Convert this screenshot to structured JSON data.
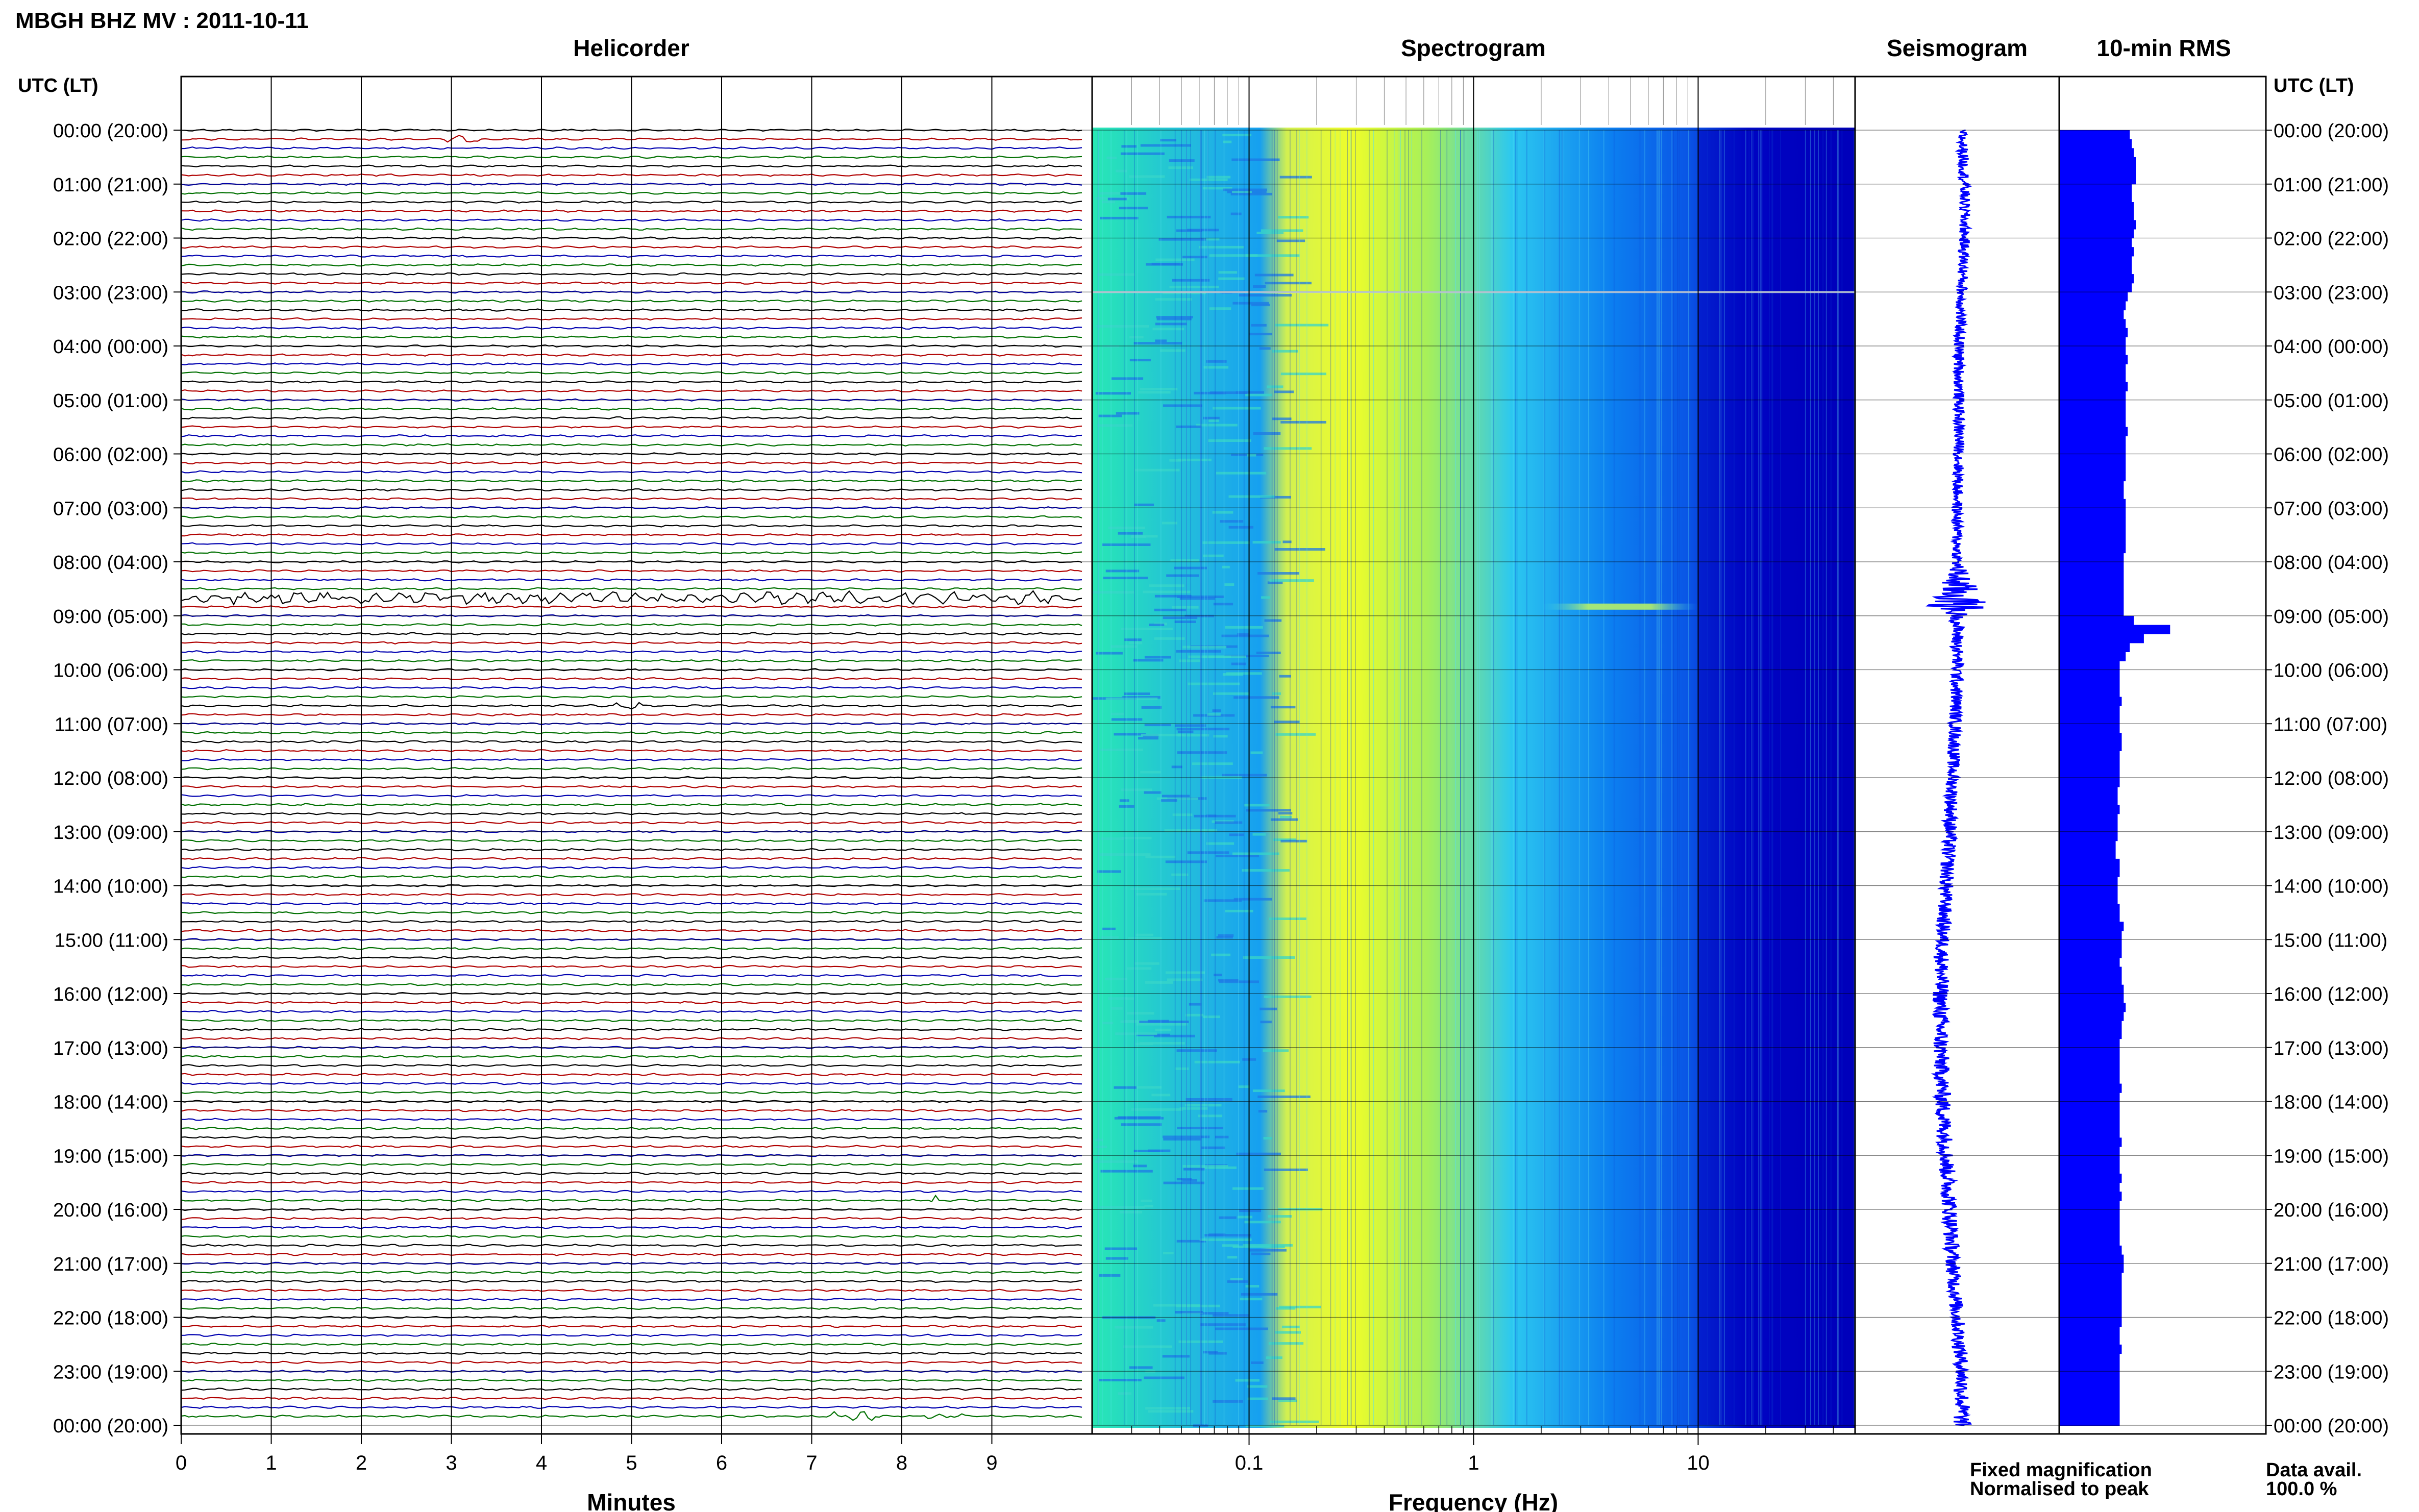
{
  "header": {
    "title": "MBGH BHZ MV : 2011-10-11",
    "left_axis_label": "UTC (LT)",
    "right_axis_label": "UTC (LT)"
  },
  "panels": {
    "helicorder_title": "Helicorder",
    "spectrogram_title": "Spectrogram",
    "seismogram_title": "Seismogram",
    "rms_title": "10-min RMS"
  },
  "footer": {
    "fixed_magnification": "Fixed magnification",
    "normalised_to_peak": "Normalised to peak",
    "data_avail_label": "Data avail.",
    "data_avail_value": "100.0 %"
  },
  "colors": {
    "trace_cycle": [
      "#000000",
      "#b00000",
      "#0000b0",
      "#007000"
    ],
    "seismogram": "#0000ff",
    "rms_bar": "#0000ff",
    "fixed_magnification": "#0000ff",
    "normalised_to_peak": "#ff0000",
    "spectro_low": "#0000b4",
    "spectro_mid": "#00b4ff",
    "spectro_high": "#f0ff00"
  },
  "chart_data": [
    {
      "type": "line",
      "panel": "helicorder",
      "title": "Helicorder",
      "xlabel": "Minutes",
      "x_ticks": [
        "0",
        "1",
        "2",
        "3",
        "4",
        "5",
        "6",
        "7",
        "8",
        "9"
      ],
      "xlim": [
        0,
        10
      ],
      "ylim": [
        0,
        24
      ],
      "y_ticks": [
        "00:00 (20:00)",
        "01:00 (21:00)",
        "02:00 (22:00)",
        "03:00 (23:00)",
        "04:00 (00:00)",
        "05:00 (01:00)",
        "06:00 (02:00)",
        "07:00 (03:00)",
        "08:00 (04:00)",
        "09:00 (05:00)",
        "10:00 (06:00)",
        "11:00 (07:00)",
        "12:00 (08:00)",
        "13:00 (09:00)",
        "14:00 (10:00)",
        "15:00 (11:00)",
        "16:00 (12:00)",
        "17:00 (13:00)",
        "18:00 (14:00)",
        "19:00 (15:00)",
        "20:00 (16:00)",
        "21:00 (17:00)",
        "22:00 (18:00)",
        "23:00 (19:00)",
        "00:00 (20:00)"
      ],
      "traces_per_hour": 6,
      "trace_count": 144,
      "events": [
        {
          "hour": 8.67,
          "minute_start": 0,
          "minute_end": 10,
          "amplitude": 3.5
        },
        {
          "hour": 8.67,
          "minute_start": 4.3,
          "minute_end": 5.2,
          "amplitude": 3.0
        },
        {
          "hour": 10.67,
          "minute_start": 4.8,
          "minute_end": 5.1,
          "amplitude": 2.5
        },
        {
          "hour": 23.83,
          "minute_start": 7.2,
          "minute_end": 7.8,
          "amplitude": 2.5
        },
        {
          "hour": 23.83,
          "minute_start": 8.2,
          "minute_end": 8.7,
          "amplitude": 2.0
        },
        {
          "hour": 19.83,
          "minute_start": 8.3,
          "minute_end": 8.45,
          "amplitude": 2.5
        },
        {
          "hour": 0.17,
          "minute_start": 2.9,
          "minute_end": 3.3,
          "amplitude": 1.8
        }
      ]
    },
    {
      "type": "heatmap",
      "panel": "spectrogram",
      "title": "Spectrogram",
      "xlabel": "Frequency (Hz)",
      "x_scale": "log",
      "x_ticks": [
        "0.1",
        "1",
        "10"
      ],
      "xlim": [
        0.02,
        50
      ],
      "ylim": [
        0,
        24
      ],
      "yellow_band_hz": [
        0.15,
        0.6
      ],
      "dark_above_hz": 10,
      "events": [
        {
          "hour": 8.83,
          "f_low": 2,
          "f_high": 10
        },
        {
          "hour": 3.0,
          "f_low": 0.02,
          "f_high": 50
        }
      ]
    },
    {
      "type": "line",
      "panel": "seismogram",
      "title": "Seismogram",
      "ylim": [
        0,
        24
      ],
      "xlim": [
        -1,
        1
      ],
      "x_ticks": [],
      "hours": [
        0,
        1,
        2,
        3,
        4,
        5,
        6,
        7,
        8,
        8.83,
        9,
        10,
        11,
        12,
        13,
        14,
        15,
        16,
        17,
        18,
        19,
        20,
        21,
        22,
        23,
        24
      ],
      "offset": [
        0.05,
        0.08,
        0.08,
        0.05,
        0.02,
        0.02,
        0.02,
        0.0,
        0.0,
        0.0,
        0.0,
        0.0,
        -0.02,
        -0.05,
        -0.08,
        -0.12,
        -0.16,
        -0.18,
        -0.18,
        -0.16,
        -0.12,
        -0.08,
        -0.05,
        0.0,
        0.05,
        0.05
      ],
      "amplitude": [
        0.06,
        0.06,
        0.06,
        0.06,
        0.06,
        0.06,
        0.06,
        0.06,
        0.06,
        0.35,
        0.08,
        0.07,
        0.07,
        0.07,
        0.08,
        0.08,
        0.08,
        0.09,
        0.09,
        0.09,
        0.09,
        0.09,
        0.08,
        0.08,
        0.08,
        0.1
      ]
    },
    {
      "type": "bar",
      "panel": "rms",
      "title": "10-min RMS",
      "orientation": "horizontal",
      "ylim": [
        0,
        24
      ],
      "xlim": [
        0,
        1
      ],
      "bin_hours": 0.1667,
      "values": [
        0.35,
        0.36,
        0.37,
        0.38,
        0.38,
        0.38,
        0.36,
        0.36,
        0.37,
        0.37,
        0.38,
        0.37,
        0.36,
        0.37,
        0.36,
        0.36,
        0.37,
        0.36,
        0.34,
        0.33,
        0.32,
        0.33,
        0.34,
        0.33,
        0.33,
        0.34,
        0.33,
        0.33,
        0.34,
        0.33,
        0.33,
        0.33,
        0.33,
        0.34,
        0.33,
        0.33,
        0.33,
        0.33,
        0.33,
        0.32,
        0.32,
        0.33,
        0.33,
        0.33,
        0.33,
        0.33,
        0.33,
        0.32,
        0.32,
        0.32,
        0.32,
        0.32,
        0.32,
        0.32,
        0.37,
        0.55,
        0.42,
        0.35,
        0.33,
        0.3,
        0.3,
        0.3,
        0.3,
        0.31,
        0.3,
        0.3,
        0.3,
        0.31,
        0.31,
        0.3,
        0.3,
        0.3,
        0.3,
        0.29,
        0.29,
        0.3,
        0.29,
        0.29,
        0.29,
        0.28,
        0.28,
        0.3,
        0.3,
        0.29,
        0.29,
        0.29,
        0.3,
        0.3,
        0.32,
        0.31,
        0.31,
        0.31,
        0.3,
        0.31,
        0.31,
        0.32,
        0.32,
        0.33,
        0.32,
        0.31,
        0.31,
        0.3,
        0.3,
        0.3,
        0.3,
        0.3,
        0.31,
        0.3,
        0.3,
        0.3,
        0.3,
        0.3,
        0.31,
        0.3,
        0.3,
        0.3,
        0.31,
        0.3,
        0.31,
        0.3,
        0.3,
        0.3,
        0.3,
        0.3,
        0.31,
        0.32,
        0.32,
        0.31,
        0.31,
        0.31,
        0.31,
        0.31,
        0.31,
        0.3,
        0.3,
        0.31,
        0.3,
        0.3,
        0.3,
        0.3,
        0.3,
        0.3,
        0.3,
        0.3
      ]
    }
  ]
}
